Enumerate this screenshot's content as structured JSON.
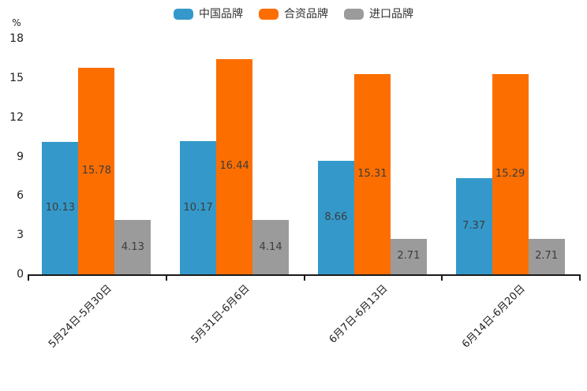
{
  "legend": {
    "items": [
      {
        "label": "中国品牌",
        "color": "#3499ca"
      },
      {
        "label": "合资品牌",
        "color": "#fd6e01"
      },
      {
        "label": "进口品牌",
        "color": "#9b9b9b"
      }
    ]
  },
  "y_axis": {
    "unit": "%",
    "ticks": [
      0,
      3,
      6,
      9,
      12,
      15,
      18
    ],
    "max": 18
  },
  "colors": {
    "axis": "#1a1a1a",
    "bar_label_text": "#3c3c3c",
    "tick_label_text": "#1f1f1f"
  },
  "chart_data": {
    "type": "bar",
    "title": "",
    "xlabel": "",
    "ylabel": "%",
    "ylim": [
      0,
      18
    ],
    "grid": false,
    "legend_position": "top",
    "bar_value_labels": "inside-middle",
    "categories": [
      "5月24日-5月30日",
      "5月31日-6月6日",
      "6月7日-6月13日",
      "6月14日-6月20日"
    ],
    "series": [
      {
        "name": "中国品牌",
        "color": "#3499ca",
        "values": [
          10.13,
          10.17,
          8.66,
          7.37
        ]
      },
      {
        "name": "合资品牌",
        "color": "#fd6e01",
        "values": [
          15.78,
          16.44,
          15.31,
          15.29
        ]
      },
      {
        "name": "进口品牌",
        "color": "#9b9b9b",
        "values": [
          4.13,
          4.14,
          2.71,
          2.71
        ]
      }
    ]
  }
}
